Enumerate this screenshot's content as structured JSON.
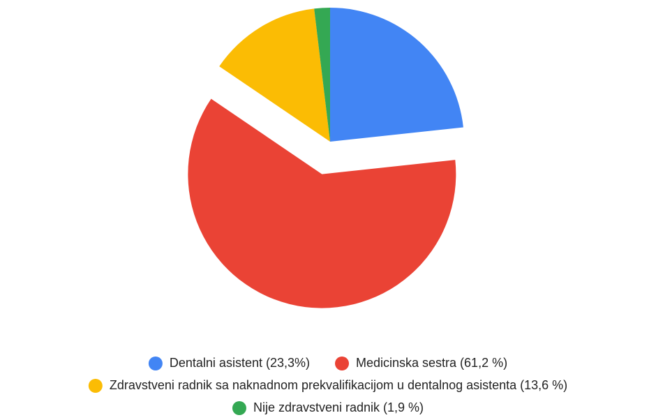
{
  "chart_data": {
    "type": "pie",
    "categories": [
      "Dentalni asistent (23,3%)",
      "Medicinska sestra (61,2 %)",
      "Zdravstveni radnik sa naknadnom prekvalifikacijom u dentalnog asistenta (13,6 %)",
      "Nije zdravstveni radnik (1,9 %)"
    ],
    "values": [
      23.3,
      61.2,
      13.6,
      1.9
    ],
    "colors": [
      "#4285f4",
      "#ea4335",
      "#fbbc04",
      "#34a853"
    ]
  }
}
